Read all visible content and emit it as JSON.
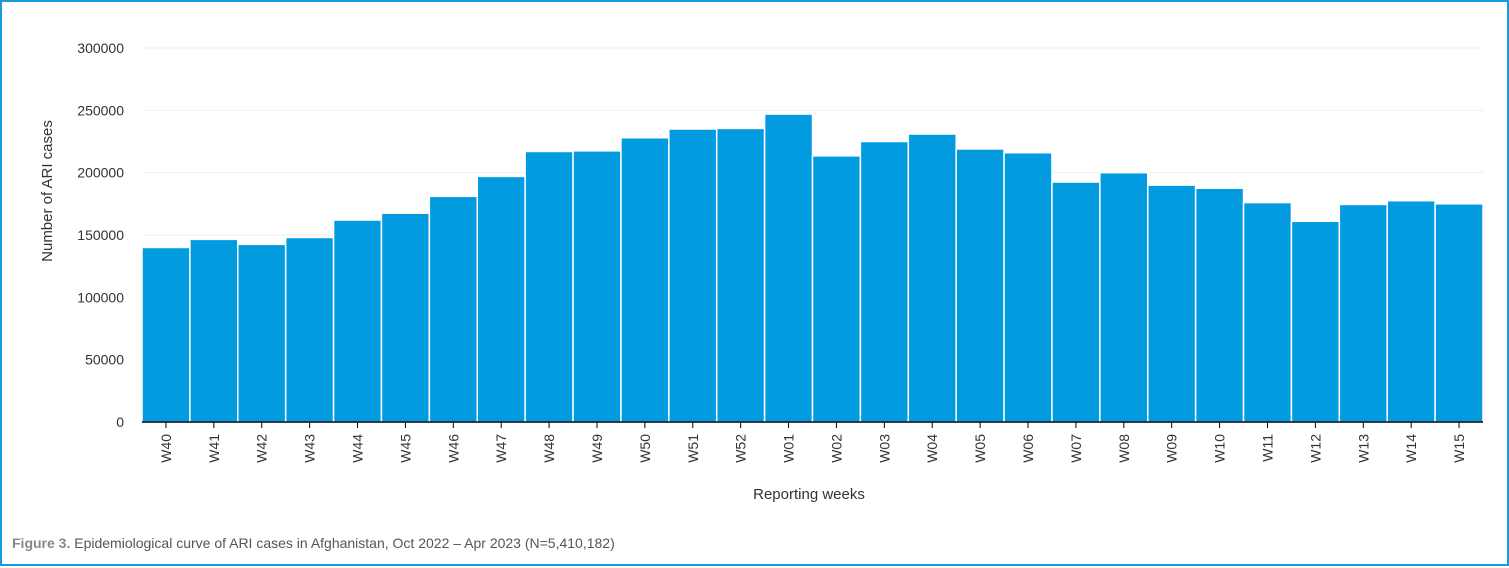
{
  "colors": {
    "bar": "#039be0",
    "bar_stroke": "#ffffff",
    "axis": "#000000",
    "grid": "#eeeeee",
    "frame": "#1a9ad8"
  },
  "chart_data": {
    "type": "bar",
    "xlabel": "Reporting weeks",
    "ylabel": "Number of ARI cases",
    "ylim": [
      0,
      300000
    ],
    "yticks": [
      0,
      50000,
      100000,
      150000,
      200000,
      250000,
      300000
    ],
    "grid": true,
    "categories": [
      "W40",
      "W41",
      "W42",
      "W43",
      "W44",
      "W45",
      "W46",
      "W47",
      "W48",
      "W49",
      "W50",
      "W51",
      "W52",
      "W01",
      "W02",
      "W03",
      "W04",
      "W05",
      "W06",
      "W07",
      "W08",
      "W09",
      "W10",
      "W11",
      "W12",
      "W13",
      "W14",
      "W15"
    ],
    "values": [
      140000,
      146500,
      142500,
      148000,
      162000,
      167500,
      181000,
      197000,
      217000,
      217500,
      228000,
      235000,
      235500,
      247000,
      213500,
      225000,
      231000,
      219000,
      216000,
      192500,
      200000,
      190000,
      187500,
      176000,
      161000,
      174500,
      177500,
      175000
    ]
  },
  "caption": {
    "label": "Figure 3.",
    "text": " Epidemiological curve of ARI cases in Afghanistan, Oct 2022 – Apr  2023 (N=5,410,182)"
  }
}
